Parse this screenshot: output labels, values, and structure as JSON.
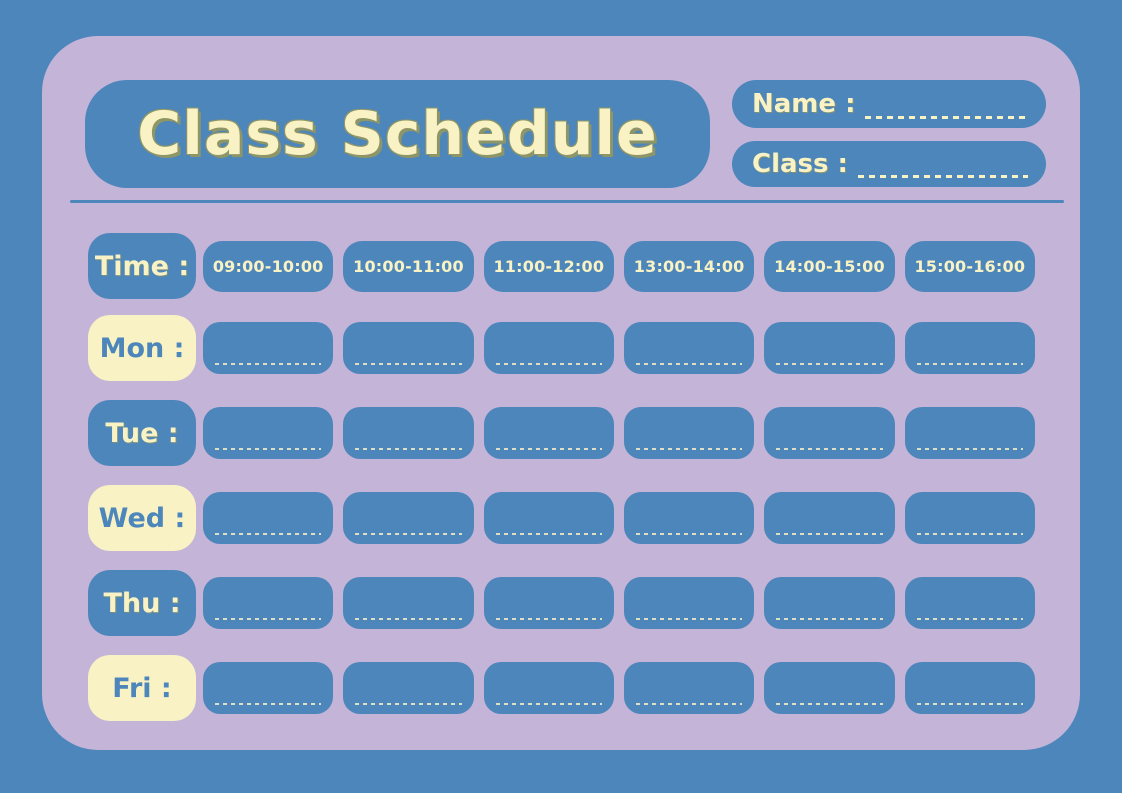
{
  "title": "Class Schedule",
  "fields": {
    "name_label": "Name :",
    "class_label": "Class :"
  },
  "schedule": {
    "time_label": "Time :",
    "time_slots": [
      "09:00-10:00",
      "10:00-11:00",
      "11:00-12:00",
      "13:00-14:00",
      "14:00-15:00",
      "15:00-16:00"
    ],
    "days": [
      "Mon :",
      "Tue :",
      "Wed :",
      "Thu :",
      "Fri :"
    ],
    "columns_per_day": 6
  },
  "colors": {
    "background_blue": "#4d86ba",
    "panel_lavender": "#c4b4d8",
    "pill_blue": "#4d86ba",
    "cream": "#f8f2c5",
    "title_shadow_olive": "#8e9566"
  }
}
